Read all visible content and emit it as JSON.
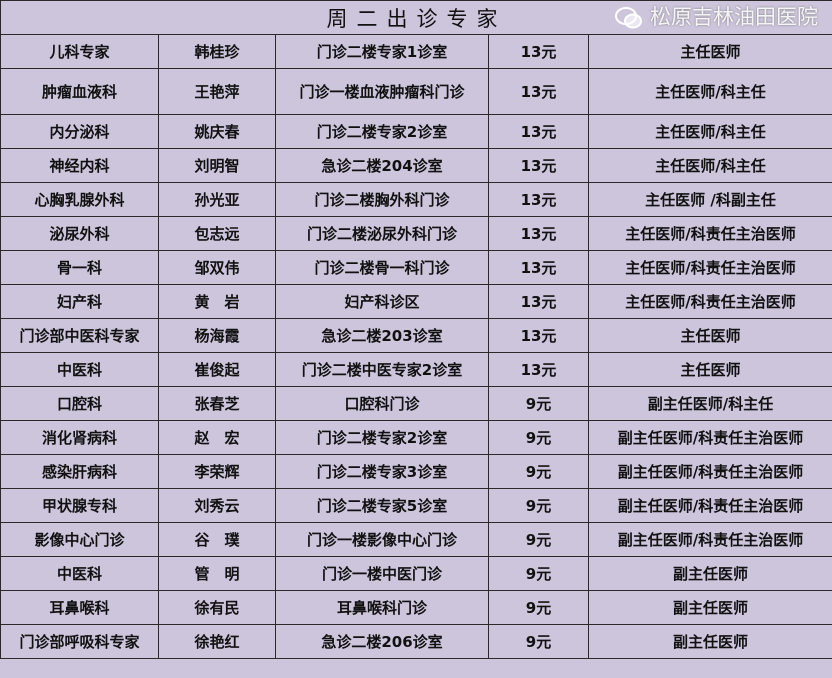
{
  "title": "周二出诊专家",
  "rows": [
    [
      "儿科专家",
      "韩桂珍",
      "门诊二楼专家1诊室",
      "13元",
      "主任医师"
    ],
    [
      "肿瘤血液科",
      "王艳萍",
      "门诊一楼血液肿瘤科门诊",
      "13元",
      "主任医师/科主任"
    ],
    [
      "内分泌科",
      "姚庆春",
      "门诊二楼专家2诊室",
      "13元",
      "主任医师/科主任"
    ],
    [
      "神经内科",
      "刘明智",
      "急诊二楼204诊室",
      "13元",
      "主任医师/科主任"
    ],
    [
      "心胸乳腺外科",
      "孙光亚",
      "门诊二楼胸外科门诊",
      "13元",
      "主任医师 /科副主任"
    ],
    [
      "泌尿外科",
      "包志远",
      "门诊二楼泌尿外科门诊",
      "13元",
      "主任医师/科责任主治医师"
    ],
    [
      "骨一科",
      "邹双伟",
      "门诊二楼骨一科门诊",
      "13元",
      "主任医师/科责任主治医师"
    ],
    [
      "妇产科",
      "黄　岩",
      "妇产科诊区",
      "13元",
      "主任医师/科责任主治医师"
    ],
    [
      "门诊部中医科专家",
      "杨海霞",
      "急诊二楼203诊室",
      "13元",
      "主任医师"
    ],
    [
      "中医科",
      "崔俊起",
      "门诊二楼中医专家2诊室",
      "13元",
      "主任医师"
    ],
    [
      "口腔科",
      "张春芝",
      "口腔科门诊",
      "9元",
      "副主任医师/科主任"
    ],
    [
      "消化肾病科",
      "赵　宏",
      "门诊二楼专家2诊室",
      "9元",
      "副主任医师/科责任主治医师"
    ],
    [
      "感染肝病科",
      "李荣辉",
      "门诊二楼专家3诊室",
      "9元",
      "副主任医师/科责任主治医师"
    ],
    [
      "甲状腺专科",
      "刘秀云",
      "门诊二楼专家5诊室",
      "9元",
      "副主任医师/科责任主治医师"
    ],
    [
      "影像中心门诊",
      "谷　璞",
      "门诊一楼影像中心门诊",
      "9元",
      "副主任医师/科责任主治医师"
    ],
    [
      "中医科",
      "管　明",
      "门诊一楼中医门诊",
      "9元",
      "副主任医师"
    ],
    [
      "耳鼻喉科",
      "徐有民",
      "耳鼻喉科门诊",
      "9元",
      "副主任医师"
    ],
    [
      "门诊部呼吸科专家",
      "徐艳红",
      "急诊二楼206诊室",
      "9元",
      "副主任医师"
    ]
  ],
  "watermark": {
    "text": "松原吉林油田医院",
    "icon": "wechat-icon"
  },
  "colors": {
    "background": "#cdc5dc",
    "border": "#2a2a2a"
  }
}
